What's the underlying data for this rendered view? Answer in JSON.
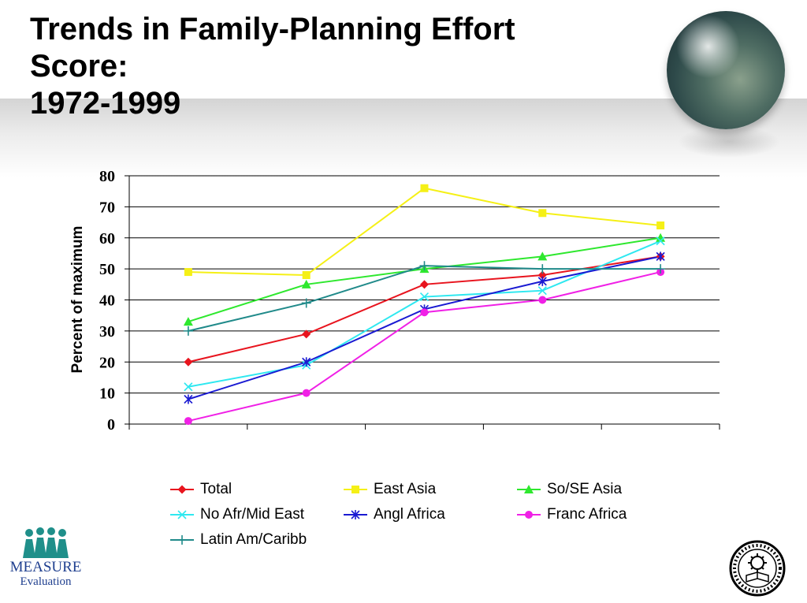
{
  "slide": {
    "title_lines": [
      "Trends in Family-Planning Effort",
      "Score:",
      "1972-1999"
    ],
    "logo_left": {
      "line1": "MEASURE",
      "line2": "Evaluation"
    },
    "icons": {
      "globe": "globe-image",
      "seal": "university-seal-icon",
      "people": "people-logo-icon"
    }
  },
  "chart_data": {
    "type": "line",
    "title": "",
    "xlabel": "",
    "ylabel": "Percent of maximum",
    "ylim": [
      0,
      80
    ],
    "yticks": [
      0,
      10,
      20,
      30,
      40,
      50,
      60,
      70,
      80
    ],
    "grid": true,
    "legend_position": "bottom",
    "categories": [
      "",
      "",
      "",
      "",
      ""
    ],
    "series": [
      {
        "name": "Total",
        "color": "#e8141e",
        "marker": "diamond",
        "values": [
          20,
          29,
          45,
          48,
          54
        ]
      },
      {
        "name": "East Asia",
        "color": "#f5f016",
        "marker": "square",
        "values": [
          49,
          48,
          76,
          68,
          64
        ]
      },
      {
        "name": "So/SE Asia",
        "color": "#2ee82e",
        "marker": "triangle",
        "values": [
          33,
          45,
          50,
          54,
          60
        ]
      },
      {
        "name": "No Afr/Mid East",
        "color": "#2ee8f0",
        "marker": "x",
        "values": [
          12,
          19,
          41,
          43,
          59
        ]
      },
      {
        "name": "Angl Africa",
        "color": "#1a1ad2",
        "marker": "star",
        "values": [
          8,
          20,
          37,
          46,
          54
        ]
      },
      {
        "name": "Franc Africa",
        "color": "#f020e6",
        "marker": "circle",
        "values": [
          1,
          10,
          36,
          40,
          49
        ]
      },
      {
        "name": "Latin Am/Caribb",
        "color": "#208a8a",
        "marker": "plus",
        "values": [
          30,
          39,
          51,
          50,
          50
        ]
      }
    ]
  }
}
